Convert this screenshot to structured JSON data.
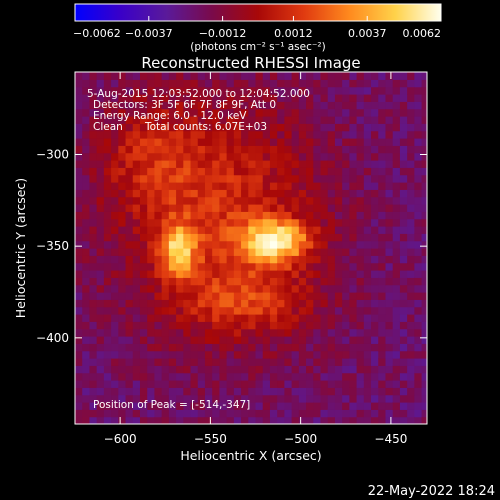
{
  "chart_data": {
    "type": "heatmap",
    "title": "Reconstructed RHESSI Image",
    "xlabel": "Heliocentric X (arcsec)",
    "ylabel": "Heliocentric Y (arcsec)",
    "xlim": [
      -625,
      -430
    ],
    "ylim": [
      -447,
      -255
    ],
    "x_ticks": [
      -600,
      -550,
      -500,
      -450
    ],
    "y_ticks": [
      -300,
      -350,
      -400
    ],
    "x_tick_labels": [
      "−600",
      "−550",
      "−500",
      "−450"
    ],
    "y_tick_labels": [
      "−300",
      "−350",
      "−400"
    ],
    "colorbar": {
      "range": [
        -0.0062,
        0.0062
      ],
      "ticks": [
        -0.0062,
        -0.0037,
        -0.0012,
        0.0012,
        0.0037,
        0.0062
      ],
      "tick_labels": [
        "−0.0062",
        "−0.0037",
        "−0.0012",
        "0.0012",
        "0.0037",
        "0.0062"
      ],
      "unit_label": "(photons cm⁻² s⁻¹ asec⁻²)",
      "colormap": [
        "#0000ff",
        "#3a00c8",
        "#5a1a9a",
        "#7a0a4a",
        "#a80808",
        "#e03a10",
        "#ff8a1e",
        "#ffd24a",
        "#ffffee"
      ]
    },
    "sources": [
      {
        "x": -514,
        "y": -347,
        "amplitude": 0.0062,
        "sigma_x": 13,
        "sigma_y": 8
      },
      {
        "x": -568,
        "y": -352,
        "amplitude": 0.0049,
        "sigma_x": 7,
        "sigma_y": 10
      },
      {
        "x": -545,
        "y": -333,
        "amplitude": 0.0032,
        "sigma_x": 40,
        "sigma_y": 45
      },
      {
        "x": -530,
        "y": -380,
        "amplitude": 0.0022,
        "sigma_x": 25,
        "sigma_y": 12
      },
      {
        "x": -585,
        "y": -300,
        "amplitude": 0.0018,
        "sigma_x": 20,
        "sigma_y": 20
      }
    ],
    "peak": {
      "x": -514,
      "y": -347
    },
    "annotations": {
      "time_range": "5-Aug-2015 12:03:52.000 to 12:04:52.000",
      "detectors": "Detectors: 3F 5F 6F 7F 8F 9F, Att 0",
      "energy": "Energy Range: 6.0 - 12.0 keV",
      "clean": "Clean",
      "counts": "Total counts: 6.07E+03",
      "peak_position": "Position of Peak = [-514,-347]"
    }
  },
  "footer": {
    "date": "22-May-2022 18:24"
  }
}
